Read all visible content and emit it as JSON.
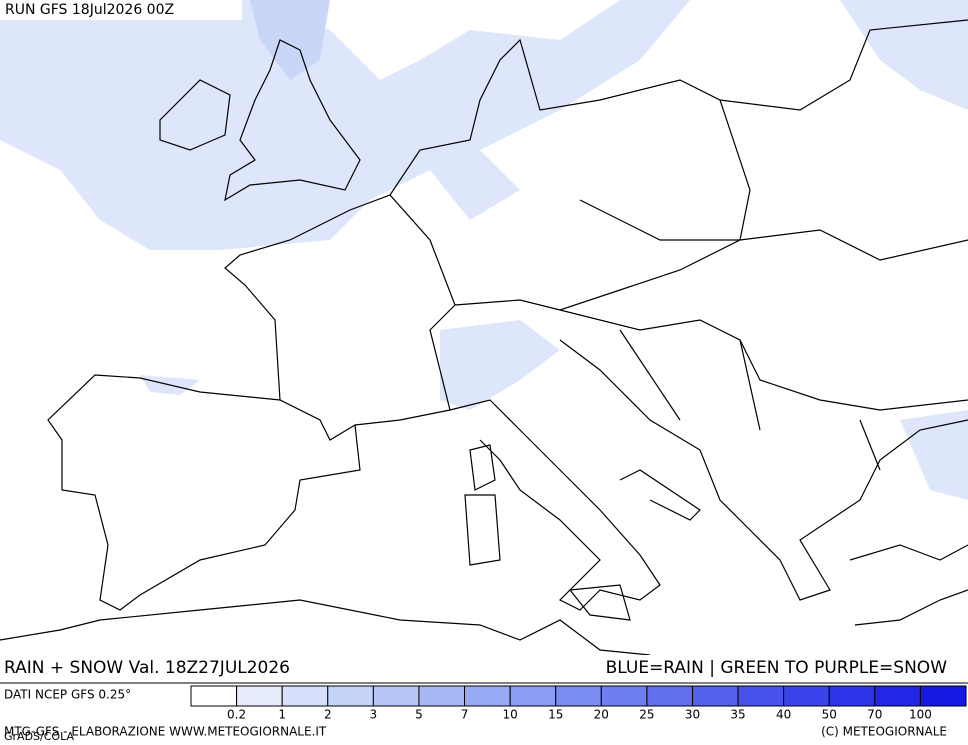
{
  "header": {
    "run": "RUN GFS 18Jul2026 00Z"
  },
  "footer": {
    "title": "RAIN + SNOW Val. 18Z27JUL2026",
    "legend_note": "BLUE=RAIN | GREEN TO PURPLE=SNOW",
    "source": "DATI NCEP GFS 0.25°",
    "credit": "MTG-GFS - ELABORAZIONE WWW.METEOGIORNALE.IT",
    "software": "GrADS/COLA",
    "copyright": "(C) METEOGIORNALE"
  },
  "colorbar": {
    "levels": [
      0.2,
      1,
      2,
      3,
      5,
      7,
      10,
      15,
      20,
      25,
      30,
      35,
      40,
      50,
      70,
      100
    ],
    "colors": [
      "#ffffff",
      "#e6ecfb",
      "#d6e0fa",
      "#c6d3f8",
      "#b7c6f7",
      "#a7b8f5",
      "#98aaf4",
      "#8a9cf3",
      "#7c8df1",
      "#6e7ff0",
      "#6170ee",
      "#5461ec",
      "#4752eb",
      "#3a43e9",
      "#2e35e8",
      "#2226e6",
      "#1618e4"
    ]
  }
}
